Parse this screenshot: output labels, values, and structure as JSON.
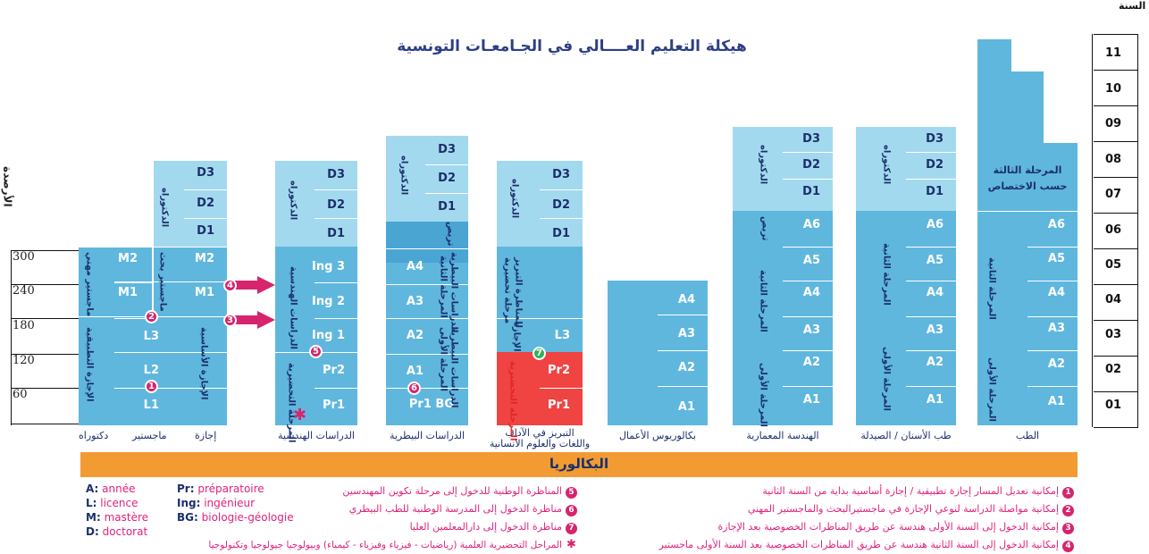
{
  "title": "هيكلة التعليم العــــالي في الجـامعـات التونسية",
  "axis": {
    "left_label": "الأرصدة",
    "right_label": "السنة",
    "credits": [
      "300",
      "240",
      "180",
      "120",
      "60"
    ],
    "years": [
      "11",
      "10",
      "09",
      "08",
      "07",
      "06",
      "05",
      "04",
      "03",
      "02",
      "01"
    ]
  },
  "bac_label": "البكالوريا",
  "col1": {
    "rows": [
      "M2",
      "M1",
      "L3",
      "L2",
      "L1",
      "D3",
      "D2",
      "D1",
      "M2",
      "M1"
    ],
    "vt_pro": "ماجستير مهني",
    "vt_rech": "ماجستير بحث",
    "vt_doct": "الدكتوراه",
    "vt_lic_app": "الإجازة التطبيقية",
    "vt_lic_fond": "الإجازة الأساسية",
    "cap_doct": "دكتوراه",
    "cap_mast": "ماجستير",
    "cap_lic": "إجازة"
  },
  "col2": {
    "rows": [
      "D3",
      "D2",
      "D1",
      "Ing 3",
      "Ing 2",
      "Ing 1",
      "Pr2",
      "Pr1"
    ],
    "vt_doct": "الدكتوراه",
    "vt_eng": "الدراسات الهندسية",
    "vt_prep": "المرحلة التحضيرية",
    "caption": "الدراسات الهندسية"
  },
  "col3": {
    "rows": [
      "D3",
      "D2",
      "D1",
      "A4",
      "A3",
      "A2",
      "A1",
      "Pr1 BG"
    ],
    "vt_doct": "الدكتوراه",
    "vt_intern": "تربص",
    "vt_second": "المرحلة الثانية",
    "vt_second2": "الدراسات البيطرية",
    "vt_first": "المرحلة الأولى",
    "vt_first2": "الدراسات البيطرية",
    "caption": "الدراسات البيطرية"
  },
  "col4": {
    "rows": [
      "D3",
      "D2",
      "D1",
      "L3",
      "Pr2",
      "Pr1"
    ],
    "vt_doct": "الدكتوراه",
    "vt_prep": "مرحلة تحضيرية",
    "vt_prep2": "للمناظرة التبريز",
    "vt_lic": "الإجازة",
    "vt_red": "المرحلة التحضيرية",
    "caption1": "التبريز في الآداب",
    "caption2": "واللغات والعلوم الانسانية"
  },
  "col5": {
    "rows": [
      "A4",
      "A3",
      "A2",
      "A1"
    ],
    "caption": "بكالوريوس الأعمال"
  },
  "col6": {
    "rows": [
      "D3",
      "D2",
      "D1",
      "A6",
      "A5",
      "A4",
      "A3",
      "A2",
      "A1"
    ],
    "vt_doct": "الدكتوراه",
    "vt_intern": "تربص",
    "vt_second": "المرحلة الثانية",
    "vt_first": "المرحلة الأولى",
    "caption": "الهندسة المعمارية"
  },
  "col7": {
    "rows": [
      "D3",
      "D2",
      "D1",
      "A6",
      "A5",
      "A4",
      "A3",
      "A2",
      "A1"
    ],
    "vt_doct": "الدكتوراه",
    "vt_second": "المرحلة الثانية",
    "vt_first": "المرحلة الأولى",
    "caption": "طب الأسنان / الصيدلة"
  },
  "col8": {
    "rows": [
      "A6",
      "A5",
      "A4",
      "A3",
      "A2",
      "A1"
    ],
    "third": "المرحلة الثالثة",
    "third2": "حسب الاختصاص",
    "vt_second": "المرحلة الثانية",
    "vt_first": "المرحلة الأولى",
    "caption": "الطب"
  },
  "markers": [
    "1",
    "2",
    "3",
    "4",
    "5",
    "6",
    "7"
  ],
  "legend_fr": [
    {
      "abbr": "A:",
      "text": " année"
    },
    {
      "abbr": "L:",
      "text": " licence"
    },
    {
      "abbr": "M:",
      "text": " mastère"
    },
    {
      "abbr": "D:",
      "text": " doctorat"
    },
    {
      "abbr": "Pr:",
      "text": " préparatoire"
    },
    {
      "abbr": "Ing:",
      "text": " ingénieur"
    },
    {
      "abbr": "BG:",
      "text": " biologie-géologie"
    }
  ],
  "legend_mid": [
    {
      "n": "5",
      "text": "المناظرة الوطنية للدخول إلى مرحلة تكوين المهندسين"
    },
    {
      "n": "6",
      "text": "مناظرة الدخول إلى المدرسة الوطنية للطب البيطري"
    },
    {
      "n": "7",
      "text": "مناظرة الدخول إلى دارالمعلمين العليا"
    },
    {
      "n": "✱",
      "text": "المراحل التحضيرية العلمية (رياضيات - فيزياء وفيزياء - كيمياء) وبيولوجيا جيولوجيا وتكنولوجيا"
    }
  ],
  "legend_right": [
    {
      "n": "1",
      "text": "إمكانية تعديل المسار إجازة تطبيقية / إجازة أساسية بداية من السنة الثانية"
    },
    {
      "n": "2",
      "text": "إمكانية مواصلة الدراسة لنوعي الإجازة في ماجستيرالبحث والماجستير المهني"
    },
    {
      "n": "3",
      "text": "إمكانية الدخول إلى السنة الأولى هندسة عن طريق المناظرات الخصوصية بعد الإجازة"
    },
    {
      "n": "4",
      "text": "إمكانية الدخول إلى السنة الثانية هندسة عن طريق المناظرات الخصوصية بعد السنة الأولى ماجستير"
    }
  ]
}
